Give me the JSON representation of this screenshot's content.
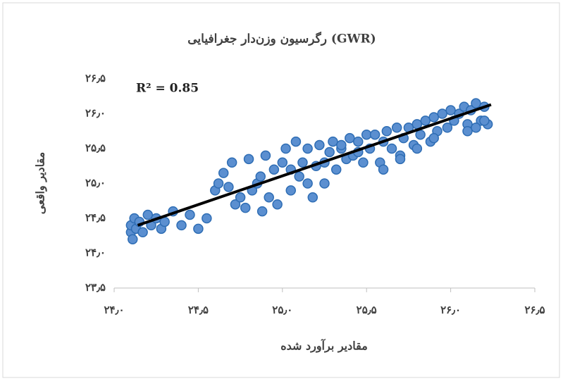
{
  "chart_data": {
    "type": "scatter",
    "title": "رگرسیون وزن‌دار جغرافیایی (GWR)",
    "x_label": "مقادیر برآورد شده",
    "y_label": "مقادیر واقعی",
    "annotation": "R² = 0.85",
    "xlim": [
      24.0,
      26.5
    ],
    "ylim": [
      23.5,
      26.5
    ],
    "xticks": [
      {
        "value": 24.0,
        "label": "۲۴٫۰"
      },
      {
        "value": 24.5,
        "label": "۲۴٫۵"
      },
      {
        "value": 25.0,
        "label": "۲۵٫۰"
      },
      {
        "value": 25.5,
        "label": "۲۵٫۵"
      },
      {
        "value": 26.0,
        "label": "۲۶٫۰"
      },
      {
        "value": 26.5,
        "label": "۲۶٫۵"
      }
    ],
    "yticks": [
      {
        "value": 23.5,
        "label": "۲۳٫۵"
      },
      {
        "value": 24.0,
        "label": "۲۴٫۰"
      },
      {
        "value": 24.5,
        "label": "۲۴٫۵"
      },
      {
        "value": 25.0,
        "label": "۲۵٫۰"
      },
      {
        "value": 25.5,
        "label": "۲۵٫۵"
      },
      {
        "value": 26.0,
        "label": "۲۶٫۰"
      },
      {
        "value": 26.5,
        "label": "۲۶٫۵"
      }
    ],
    "color": "#5b8fd0",
    "edge_color": "#2e6db4",
    "x": [
      24.1,
      24.1,
      24.11,
      24.12,
      24.13,
      24.15,
      24.17,
      24.2,
      24.22,
      24.25,
      24.28,
      24.3,
      24.35,
      24.4,
      24.45,
      24.5,
      24.55,
      24.6,
      24.62,
      24.65,
      24.7,
      24.72,
      24.75,
      24.8,
      24.82,
      24.85,
      24.88,
      24.9,
      24.92,
      24.95,
      24.97,
      25.0,
      24.68,
      24.78,
      24.87,
      25.02,
      25.05,
      25.08,
      25.1,
      25.12,
      25.15,
      25.18,
      25.2,
      25.22,
      25.25,
      25.28,
      25.3,
      25.32,
      25.35,
      25.38,
      25.4,
      25.42,
      25.45,
      25.48,
      25.5,
      25.05,
      25.15,
      25.25,
      25.35,
      25.45,
      25.52,
      25.55,
      25.58,
      25.6,
      25.62,
      25.65,
      25.68,
      25.7,
      25.72,
      25.75,
      25.78,
      25.8,
      25.82,
      25.85,
      25.88,
      25.9,
      25.92,
      25.95,
      25.98,
      26.0,
      25.6,
      25.7,
      25.8,
      25.9,
      26.02,
      26.05,
      26.08,
      26.1,
      26.12,
      26.15,
      26.18,
      26.2,
      26.22,
      26.1,
      26.15,
      26.2
    ],
    "y": [
      24.3,
      24.4,
      24.2,
      24.5,
      24.35,
      24.45,
      24.3,
      24.55,
      24.4,
      24.5,
      24.35,
      24.45,
      24.6,
      24.4,
      24.55,
      24.35,
      24.5,
      24.9,
      25.0,
      25.15,
      25.3,
      24.7,
      24.8,
      25.35,
      24.9,
      25.0,
      24.6,
      25.4,
      24.8,
      25.2,
      24.7,
      25.3,
      24.95,
      24.65,
      25.1,
      25.5,
      24.9,
      25.6,
      25.1,
      25.3,
      25.5,
      24.8,
      25.25,
      25.55,
      25.0,
      25.45,
      25.6,
      25.2,
      25.5,
      25.35,
      25.65,
      25.4,
      25.6,
      25.3,
      25.7,
      25.2,
      25.0,
      25.3,
      25.55,
      25.45,
      25.5,
      25.7,
      25.3,
      25.6,
      25.75,
      25.5,
      25.8,
      25.4,
      25.65,
      25.8,
      25.55,
      25.85,
      25.7,
      25.9,
      25.6,
      25.95,
      25.75,
      26.0,
      25.8,
      26.05,
      25.2,
      25.35,
      25.5,
      25.65,
      25.9,
      26.0,
      26.1,
      25.85,
      26.05,
      26.15,
      25.9,
      26.1,
      25.85,
      25.75,
      25.8,
      25.9
    ],
    "trendline": {
      "color": "#000000",
      "x": [
        24.14,
        26.24
      ],
      "y": [
        24.4,
        26.13
      ]
    }
  }
}
